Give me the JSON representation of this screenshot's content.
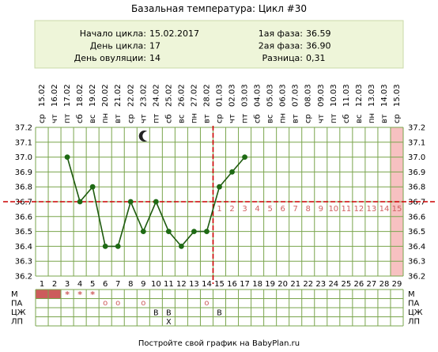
{
  "title": "Базальная температура: Цикл #30",
  "info": {
    "left": [
      {
        "label": "Начало цикла:",
        "value": "15.02.2017"
      },
      {
        "label": "День цикла:",
        "value": "17"
      },
      {
        "label": "День овуляции:",
        "value": "14"
      }
    ],
    "right": [
      {
        "label": "1ая фаза:",
        "value": "36.59"
      },
      {
        "label": "2ая фаза:",
        "value": "36.90"
      },
      {
        "label": "Разница:",
        "value": "0,31"
      }
    ]
  },
  "colors": {
    "info_bg": "#eef5d9",
    "grid": "#7aa54d",
    "line": "#1e5a0f",
    "point": "#1e6a14",
    "coverline": "#cc0000",
    "period": "#cc5c5c",
    "highlight_col": "#f7c1c1",
    "phase2_numbers": "#d06060"
  },
  "chart_data": {
    "type": "line",
    "title": "Базальная температура: Цикл #30",
    "x": [
      1,
      2,
      3,
      4,
      5,
      6,
      7,
      8,
      9,
      10,
      11,
      12,
      13,
      14,
      15,
      16,
      17,
      18,
      19,
      20,
      21,
      22,
      23,
      24,
      25,
      26,
      27,
      28,
      29
    ],
    "dates": [
      "15.02",
      "16.02",
      "17.02",
      "18.02",
      "19.02",
      "20.02",
      "21.02",
      "22.02",
      "23.02",
      "24.02",
      "25.02",
      "26.02",
      "27.02",
      "28.02",
      "01.03",
      "02.03",
      "03.03",
      "04.03",
      "05.03",
      "06.03",
      "07.03",
      "08.03",
      "09.03",
      "10.03",
      "11.03",
      "12.03",
      "13.03",
      "14.03",
      "15.03"
    ],
    "weekdays": [
      "ср",
      "чт",
      "пт",
      "сб",
      "вс",
      "пн",
      "вт",
      "ср",
      "чт",
      "пт",
      "сб",
      "вс",
      "пн",
      "вт",
      "ср",
      "чт",
      "пт",
      "сб",
      "вс",
      "пн",
      "вт",
      "ср",
      "чт",
      "пт",
      "сб",
      "вс",
      "пн",
      "вт",
      "ср"
    ],
    "series": [
      {
        "points": [
          {
            "day": 3,
            "temp": 37.0
          },
          {
            "day": 4,
            "temp": 36.7
          },
          {
            "day": 5,
            "temp": 36.8
          },
          {
            "day": 6,
            "temp": 36.4
          },
          {
            "day": 7,
            "temp": 36.4
          },
          {
            "day": 8,
            "temp": 36.7
          },
          {
            "day": 9,
            "temp": 36.5
          },
          {
            "day": 10,
            "temp": 36.7
          },
          {
            "day": 11,
            "temp": 36.5
          },
          {
            "day": 12,
            "temp": 36.4
          },
          {
            "day": 13,
            "temp": 36.5
          },
          {
            "day": 14,
            "temp": 36.5
          },
          {
            "day": 15,
            "temp": 36.8
          },
          {
            "day": 16,
            "temp": 36.9
          },
          {
            "day": 17,
            "temp": 37.0
          }
        ]
      }
    ],
    "yticks": [
      "36.2",
      "36.3",
      "36.4",
      "36.5",
      "36.6",
      "36.7",
      "36.8",
      "36.9",
      "37.0",
      "37.1",
      "37.2"
    ],
    "ylim": [
      36.2,
      37.2
    ],
    "coverline": 36.7,
    "ovulation_day": 14,
    "highlight_day": 29,
    "phase2_labels": [
      "1",
      "2",
      "3",
      "4",
      "5",
      "6",
      "7",
      "8",
      "9",
      "10",
      "11",
      "12",
      "13",
      "14",
      "15"
    ],
    "grid": true
  },
  "table": {
    "rows": [
      {
        "label": "М",
        "cells": {
          "1": "period",
          "2": "period",
          "3": "*",
          "4": "*",
          "5": "*"
        }
      },
      {
        "label": "ПА",
        "cells": {
          "6": "o",
          "7": "o",
          "9": "o",
          "14": "o"
        }
      },
      {
        "label": "ЦЖ",
        "cells": {
          "10": "B",
          "11": "B",
          "15": "B"
        }
      },
      {
        "label": "ЛП",
        "cells": {
          "11": "X"
        }
      }
    ]
  },
  "footer": "Постройте свой график на BabyPlan.ru"
}
